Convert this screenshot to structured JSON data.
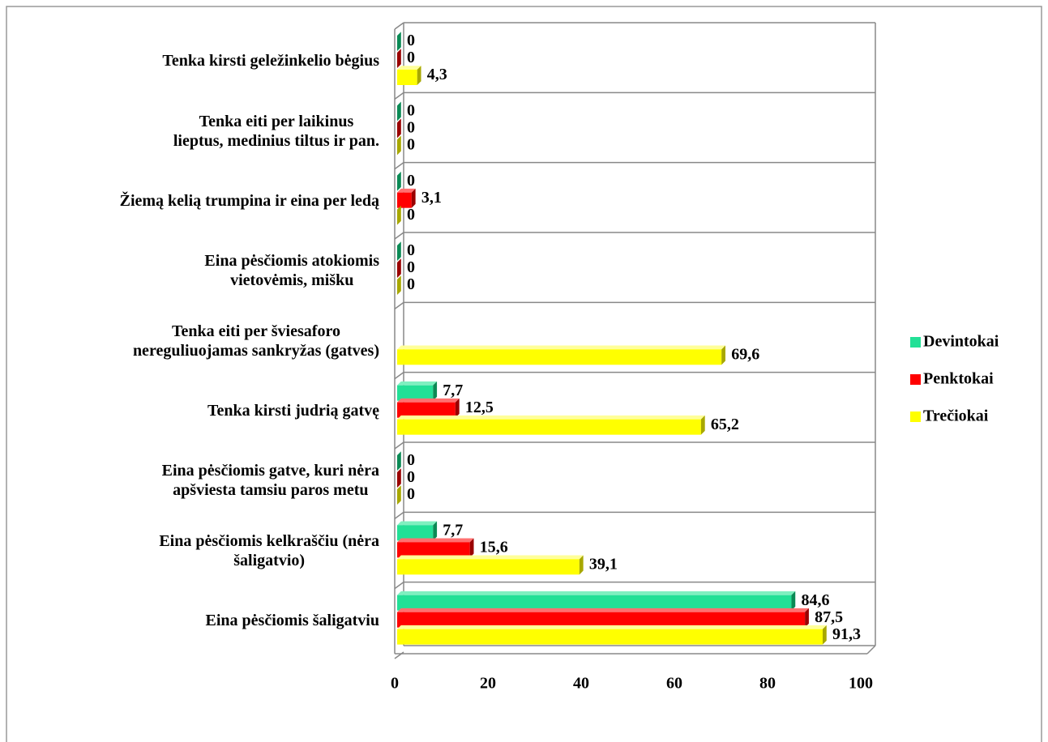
{
  "chart_data": {
    "type": "bar",
    "orientation": "horizontal",
    "categories": [
      "Tenka kirsti geležinkelio bėgius",
      "Tenka eiti per laikinus\nlieptus, medinius tiltus ir pan.",
      "Žiemą kelią trumpina ir eina per ledą",
      "Eina pėsčiomis atokiomis\nvietovėmis, mišku",
      "Tenka eiti per šviesaforo\nnereguliuojamas sankryžas (gatves)",
      "Tenka kirsti judrią gatvę",
      "Eina pėsčiomis gatve, kuri nėra\napšviesta tamsiu paros metu",
      "Eina pėsčiomis kelkraščiu (nėra\nšaligatvio)",
      "Eina pėsčiomis šaligatviu"
    ],
    "series": [
      {
        "name": "Devintokai",
        "color": "#22e096",
        "values": [
          0,
          0,
          0,
          0,
          null,
          7.7,
          0,
          7.7,
          84.6
        ],
        "value_labels": [
          "0",
          "0",
          "0",
          "0",
          null,
          "7,7",
          "0",
          "7,7",
          "84,6"
        ]
      },
      {
        "name": "Penktokai",
        "color": "#ff0000",
        "values": [
          0,
          0,
          3.1,
          0,
          null,
          12.5,
          0,
          15.6,
          87.5
        ],
        "value_labels": [
          "0",
          "0",
          "3,1",
          "0",
          null,
          "12,5",
          "0",
          "15,6",
          "87,5"
        ]
      },
      {
        "name": "Trečiokai",
        "color": "#ffff00",
        "values": [
          4.3,
          0,
          0,
          0,
          69.6,
          65.2,
          0,
          39.1,
          91.3
        ],
        "value_labels": [
          "4,3",
          "0",
          "0",
          "0",
          "69,6",
          "65,2",
          "0",
          "39,1",
          "91,3"
        ]
      }
    ],
    "xlim": [
      0,
      100
    ],
    "xticks": [
      0,
      20,
      40,
      60,
      80,
      100
    ],
    "grid": false,
    "legend": "right"
  }
}
